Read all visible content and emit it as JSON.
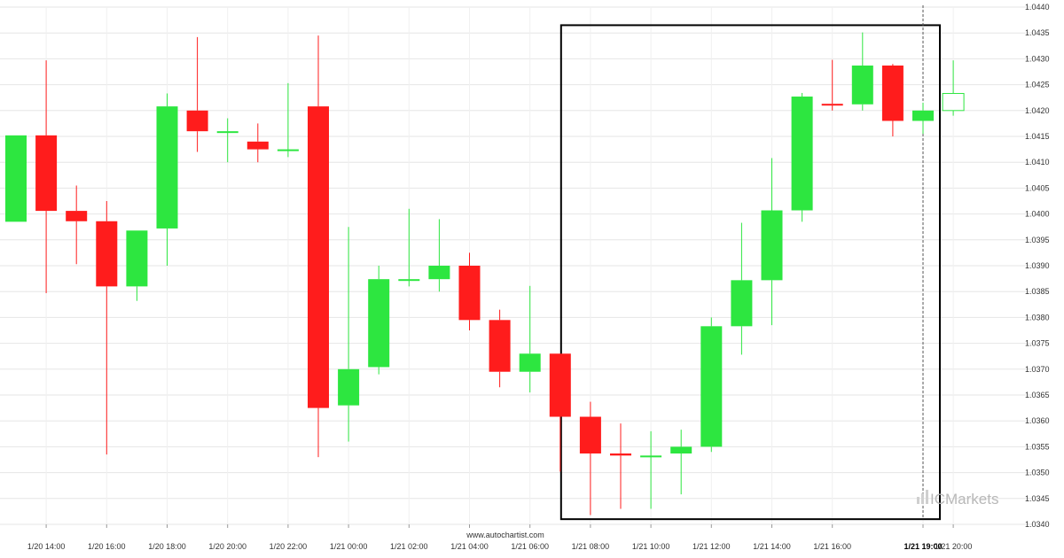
{
  "chart_data": {
    "type": "candlestick",
    "x": [
      "1/20 13:00",
      "1/20 14:00",
      "1/20 15:00",
      "1/20 16:00",
      "1/20 17:00",
      "1/20 18:00",
      "1/20 19:00",
      "1/20 20:00",
      "1/20 21:00",
      "1/20 22:00",
      "1/20 23:00",
      "1/21 00:00",
      "1/21 01:00",
      "1/21 02:00",
      "1/21 03:00",
      "1/21 04:00",
      "1/21 05:00",
      "1/21 06:00",
      "1/21 07:00",
      "1/21 08:00",
      "1/21 09:00",
      "1/21 10:00",
      "1/21 11:00",
      "1/21 12:00",
      "1/21 13:00",
      "1/21 14:00",
      "1/21 15:00",
      "1/21 16:00",
      "1/21 17:00",
      "1/21 18:00",
      "1/21 19:00",
      "1/21 20:00"
    ],
    "series": [
      {
        "open": [
          1.03985,
          1.04152,
          1.04006,
          1.03986,
          1.0386,
          1.03972,
          1.042,
          1.0416,
          1.0414,
          1.04125,
          1.04208,
          1.0363,
          1.03704,
          1.03874,
          1.03874,
          1.039,
          1.03795,
          1.03695,
          1.0373,
          1.03608,
          1.03537,
          1.03533,
          1.03537,
          1.0355,
          1.03783,
          1.03872,
          1.04007,
          1.04213,
          1.04212,
          1.04287,
          1.0418,
          1.042
        ],
        "high": [
          1.04152,
          1.04297,
          1.04055,
          1.04025,
          1.03968,
          1.04233,
          1.04342,
          1.04185,
          1.04175,
          1.04253,
          1.04345,
          1.03975,
          1.039,
          1.0401,
          1.0399,
          1.03925,
          1.03815,
          1.03861,
          1.0373,
          1.03637,
          1.03595,
          1.0358,
          1.03583,
          1.038,
          1.03983,
          1.04108,
          1.04234,
          1.04298,
          1.04351,
          1.0429,
          1.04215,
          1.04297
        ],
        "low": [
          1.03985,
          1.03847,
          1.03903,
          1.03535,
          1.03832,
          1.039,
          1.0412,
          1.041,
          1.041,
          1.0411,
          1.0353,
          1.0356,
          1.0369,
          1.0386,
          1.0385,
          1.03775,
          1.03665,
          1.03655,
          1.03502,
          1.03418,
          1.0343,
          1.0343,
          1.03458,
          1.0354,
          1.03728,
          1.03785,
          1.03985,
          1.042,
          1.042,
          1.0415,
          1.04155,
          1.0419
        ],
        "close": [
          1.04152,
          1.04006,
          1.03986,
          1.0386,
          1.03968,
          1.04208,
          1.0416,
          1.0416,
          1.04125,
          1.04125,
          1.03625,
          1.037,
          1.03874,
          1.03874,
          1.039,
          1.03795,
          1.03695,
          1.0373,
          1.03608,
          1.03537,
          1.03533,
          1.03533,
          1.0355,
          1.03783,
          1.03872,
          1.04007,
          1.04227,
          1.04212,
          1.04287,
          1.0418,
          1.042,
          1.04233
        ]
      }
    ],
    "colors": {
      "up": "#2de640",
      "down": "#ff1c1c",
      "current_candle_border": "#2de640",
      "box": "#000000",
      "grid": "#e6e6e6"
    },
    "ylim": [
      1.034,
      1.044
    ],
    "y_tick_labels": [
      "1.0340",
      "1.0345",
      "1.0350",
      "1.0355",
      "1.0360",
      "1.0365",
      "1.0370",
      "1.0375",
      "1.0380",
      "1.0385",
      "1.0390",
      "1.0395",
      "1.0400",
      "1.0405",
      "1.0410",
      "1.0415",
      "1.0420",
      "1.0425",
      "1.0430",
      "1.0435",
      "1.0440"
    ],
    "x_tick_labels": [
      "1/20 14:00",
      "1/20 16:00",
      "1/20 18:00",
      "1/20 20:00",
      "1/20 22:00",
      "1/21 00:00",
      "1/21 02:00",
      "1/21 04:00",
      "1/21 06:00",
      "1/21 08:00",
      "1/21 10:00",
      "1/21 12:00",
      "1/21 14:00",
      "1/21 16:00",
      "1/21 19:00",
      "1/21 20:00"
    ],
    "highlighted_x_tick": "1/21 19:00",
    "highlight_box": {
      "x_from": "1/21 07:00",
      "x_to": "1/21 19:00",
      "y_from": 1.0341,
      "y_to": 1.04365
    },
    "vertical_marker_x": "1/21 19:00",
    "grid": true
  },
  "watermark": {
    "site": "www.autochartist.com",
    "brand": "ICMarkets"
  }
}
